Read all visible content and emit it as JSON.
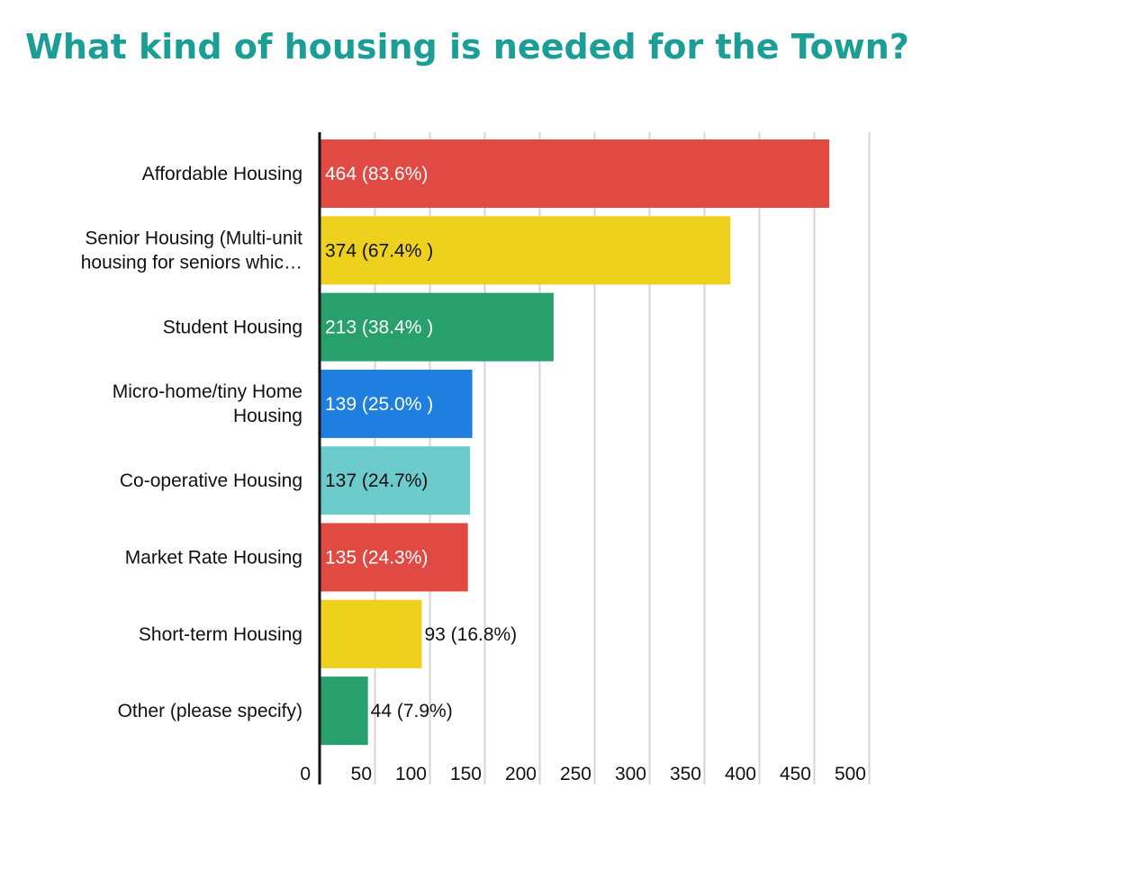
{
  "title": "What kind of housing is needed for the Town?",
  "chart_data": {
    "type": "bar",
    "orientation": "horizontal",
    "categories": [
      "Affordable Housing",
      "Senior Housing (Multi-unit housing for seniors whic…",
      "Student Housing",
      "Micro-home/tiny Home Housing",
      "Co-operative Housing",
      "Market Rate Housing",
      "Short-term Housing",
      "Other (please specify)"
    ],
    "category_lines": [
      [
        "Affordable Housing"
      ],
      [
        "Senior Housing (Multi-unit",
        "housing for seniors whic…"
      ],
      [
        "Student Housing"
      ],
      [
        "Micro-home/tiny Home",
        "Housing"
      ],
      [
        "Co-operative Housing"
      ],
      [
        "Market Rate Housing"
      ],
      [
        "Short-term Housing"
      ],
      [
        "Other (please specify)"
      ]
    ],
    "values": [
      464,
      374,
      213,
      139,
      137,
      135,
      93,
      44
    ],
    "data_labels": [
      "464 (83.6%)",
      "374 (67.4% )",
      "213 (38.4% )",
      "139 (25.0% )",
      "137 (24.7%)",
      "135 (24.3%)",
      "93 (16.8%)",
      "44 (7.9%)"
    ],
    "colors": [
      "#e04a42",
      "#edd11c",
      "#27a06b",
      "#1f7fe0",
      "#6ccccb",
      "#e04a42",
      "#edd11c",
      "#27a06b"
    ],
    "label_colors": [
      "#ffffff",
      "#111111",
      "#ffffff",
      "#ffffff",
      "#111111",
      "#ffffff",
      "#111111",
      "#111111"
    ],
    "label_inside": [
      true,
      true,
      true,
      true,
      true,
      true,
      false,
      false
    ],
    "xticks": [
      0,
      50,
      100,
      150,
      200,
      250,
      300,
      350,
      400,
      450,
      500
    ],
    "xlim": [
      0,
      500
    ],
    "grid": true,
    "xlabel": "",
    "ylabel": ""
  }
}
